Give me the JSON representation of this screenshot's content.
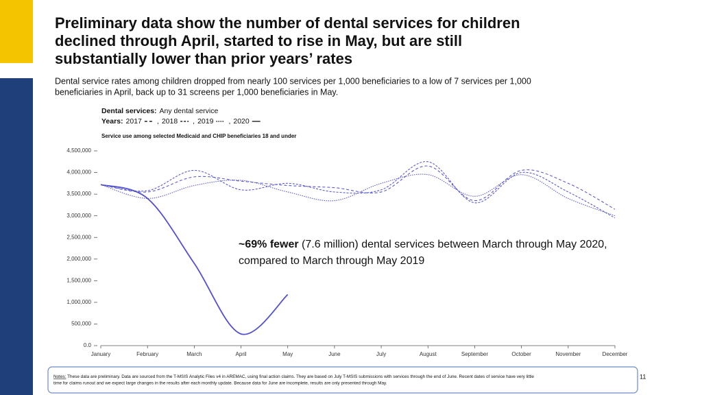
{
  "header": {
    "title": [
      "Preliminary data show the number of dental services for children",
      "declined through April, started to rise in May, but are still",
      "substantially lower than prior years’ rates"
    ],
    "subtitle": [
      "Dental service rates among children dropped from nearly 100 services per 1,000 beneficiaries to a low of 7 services per 1,000",
      "beneficiaries in April, back up to 31 screens per 1,000 beneficiaries in May."
    ]
  },
  "chart_data": {
    "type": "line",
    "legend": {
      "label_bold": "Dental services:",
      "label": "Any dental service",
      "years_bold": "Years:",
      "separator": ","
    },
    "chart_subtitle": "Service use among selected Medicaid and CHIP beneficiaries 18 and under",
    "categories": [
      "January",
      "February",
      "March",
      "April",
      "May",
      "June",
      "July",
      "August",
      "September",
      "October",
      "November",
      "December"
    ],
    "series": [
      {
        "name": "2017",
        "color": "#5a5ad0",
        "dash": "4,3",
        "values": [
          3720000,
          3550000,
          3900000,
          3800000,
          3700000,
          3650000,
          3550000,
          4150000,
          3350000,
          4050000,
          3750000,
          3150000
        ]
      },
      {
        "name": "2018",
        "color": "#5a5ad0",
        "dash": "3,2",
        "values": [
          3720000,
          3580000,
          4050000,
          3600000,
          3750000,
          3550000,
          3600000,
          4250000,
          3300000,
          4000000,
          3550000,
          2950000
        ]
      },
      {
        "name": "2019",
        "color": "#5a5ad0",
        "dash": "1.5,1.5",
        "values": [
          3720000,
          3400000,
          3700000,
          3820000,
          3550000,
          3350000,
          3750000,
          3950000,
          3450000,
          3950000,
          3400000,
          3000000
        ]
      },
      {
        "name": "2020",
        "color": "#5050d0",
        "dash": "none",
        "values": [
          3720000,
          3400000,
          1900000,
          270000,
          1180000,
          null,
          null,
          null,
          null,
          null,
          null,
          null
        ]
      }
    ],
    "ylim": [
      0,
      4500000
    ],
    "yticks": [
      {
        "value": 0,
        "label": "0.0"
      },
      {
        "value": 500000,
        "label": "500,000"
      },
      {
        "value": 1000000,
        "label": "1,000,000"
      },
      {
        "value": 1500000,
        "label": "1,500,000"
      },
      {
        "value": 2000000,
        "label": "2,000,000"
      },
      {
        "value": 2500000,
        "label": "2,500,000"
      },
      {
        "value": 3000000,
        "label": "3,000,000"
      },
      {
        "value": 3500000,
        "label": "3,500,000"
      },
      {
        "value": 4000000,
        "label": "4,000,000"
      },
      {
        "value": 4500000,
        "label": "4,500,000"
      }
    ],
    "annotation": {
      "bold": "~69% fewer",
      "rest": " (7.6 million) dental services between March through May 2020,",
      "line2": "compared to March through May 2019"
    }
  },
  "footer": {
    "notes_label": "Notes:",
    "notes": [
      " These data are preliminary. Data are sourced from the T-MSIS Analytic Files v4 in AREMAC, using final action claims. They are based on July T-MSIS submissions with services through the end of June. Recent dates of service have very little",
      "time for claims runout and we expect large changes in the results after each monthly update. Because data for June are incomplete, results are only presented through May."
    ],
    "page": "11"
  }
}
